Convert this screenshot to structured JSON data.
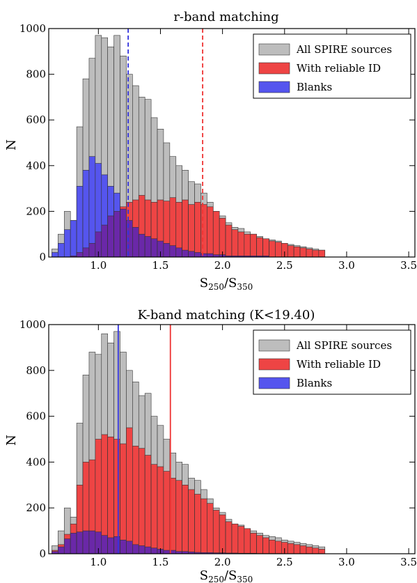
{
  "chart_data": [
    {
      "type": "bar",
      "title": "r-band matching",
      "xlabel_main": "S",
      "xlabel_sub1": "250",
      "xlabel_sep": "/S",
      "xlabel_sub2": "350",
      "ylabel": "N",
      "xlim": [
        0.6,
        3.55
      ],
      "ylim": [
        0,
        1000
      ],
      "xticks": [
        "1.0",
        "1.5",
        "2.0",
        "2.5",
        "3.0",
        "3.5"
      ],
      "yticks": [
        "0",
        "200",
        "400",
        "600",
        "800",
        "1000"
      ],
      "bin_start": 0.625,
      "bin_width": 0.05,
      "legend_position": "top-right",
      "colors": {
        "all": "#bdbdbd",
        "reliable": "#ee4444",
        "blanks": "#5555ee",
        "overlap": "#6a28a8"
      },
      "vlines": [
        {
          "x": 1.24,
          "color": "#3333dd",
          "style": "dashed"
        },
        {
          "x": 1.84,
          "color": "#ee3333",
          "style": "dashed"
        }
      ],
      "series": [
        {
          "name": "All SPIRE sources",
          "values": [
            35,
            100,
            200,
            160,
            570,
            780,
            870,
            970,
            960,
            920,
            970,
            880,
            800,
            750,
            700,
            690,
            610,
            560,
            500,
            440,
            400,
            380,
            330,
            320,
            280,
            240,
            200,
            180,
            150,
            130,
            125,
            110,
            100,
            90,
            80,
            75,
            70,
            60,
            55,
            50,
            45,
            40,
            35,
            30
          ]
        },
        {
          "name": "With reliable ID",
          "values": [
            0,
            0,
            0,
            5,
            20,
            40,
            60,
            110,
            140,
            180,
            200,
            220,
            240,
            250,
            270,
            250,
            240,
            250,
            245,
            260,
            240,
            250,
            230,
            240,
            230,
            220,
            200,
            170,
            140,
            120,
            110,
            100,
            100,
            85,
            80,
            70,
            65,
            60,
            50,
            45,
            40,
            35,
            30,
            30
          ]
        },
        {
          "name": "Blanks",
          "values": [
            20,
            60,
            120,
            160,
            310,
            380,
            440,
            410,
            360,
            310,
            280,
            210,
            160,
            130,
            100,
            90,
            80,
            70,
            60,
            50,
            40,
            30,
            25,
            20,
            15,
            15,
            10,
            10,
            5,
            5,
            5,
            5,
            5,
            5,
            5,
            0,
            0,
            0,
            0,
            0,
            0,
            0,
            0,
            0
          ]
        }
      ]
    },
    {
      "type": "bar",
      "title": "K-band matching (K<19.40)",
      "xlabel_main": "S",
      "xlabel_sub1": "250",
      "xlabel_sep": "/S",
      "xlabel_sub2": "350",
      "ylabel": "N",
      "xlim": [
        0.6,
        3.55
      ],
      "ylim": [
        0,
        1000
      ],
      "xticks": [
        "1.0",
        "1.5",
        "2.0",
        "2.5",
        "3.0",
        "3.5"
      ],
      "yticks": [
        "0",
        "200",
        "400",
        "600",
        "800",
        "1000"
      ],
      "bin_start": 0.625,
      "bin_width": 0.05,
      "legend_position": "top-right",
      "colors": {
        "all": "#bdbdbd",
        "reliable": "#ee4444",
        "blanks": "#5555ee",
        "overlap": "#6a28a8"
      },
      "vlines": [
        {
          "x": 1.16,
          "color": "#3333dd",
          "style": "solid"
        },
        {
          "x": 1.58,
          "color": "#ee3333",
          "style": "solid"
        }
      ],
      "series": [
        {
          "name": "All SPIRE sources",
          "values": [
            35,
            100,
            200,
            160,
            570,
            780,
            880,
            870,
            960,
            920,
            970,
            880,
            800,
            750,
            690,
            700,
            600,
            560,
            500,
            440,
            400,
            390,
            330,
            320,
            280,
            240,
            200,
            180,
            150,
            130,
            125,
            110,
            100,
            90,
            80,
            75,
            70,
            60,
            55,
            50,
            45,
            40,
            35,
            30
          ]
        },
        {
          "name": "With reliable ID",
          "values": [
            15,
            40,
            85,
            130,
            300,
            400,
            410,
            500,
            520,
            510,
            500,
            480,
            550,
            470,
            460,
            430,
            390,
            380,
            360,
            330,
            320,
            300,
            280,
            260,
            240,
            220,
            190,
            170,
            140,
            130,
            120,
            110,
            90,
            80,
            70,
            60,
            55,
            50,
            45,
            40,
            35,
            30,
            25,
            20
          ]
        },
        {
          "name": "Blanks",
          "values": [
            10,
            30,
            65,
            90,
            95,
            100,
            100,
            95,
            80,
            70,
            75,
            60,
            55,
            40,
            35,
            30,
            25,
            20,
            15,
            15,
            10,
            10,
            8,
            6,
            5,
            5,
            4,
            4,
            3,
            3,
            2,
            2,
            2,
            1,
            1,
            1,
            1,
            0,
            0,
            0,
            0,
            0,
            0,
            0
          ]
        }
      ]
    }
  ]
}
